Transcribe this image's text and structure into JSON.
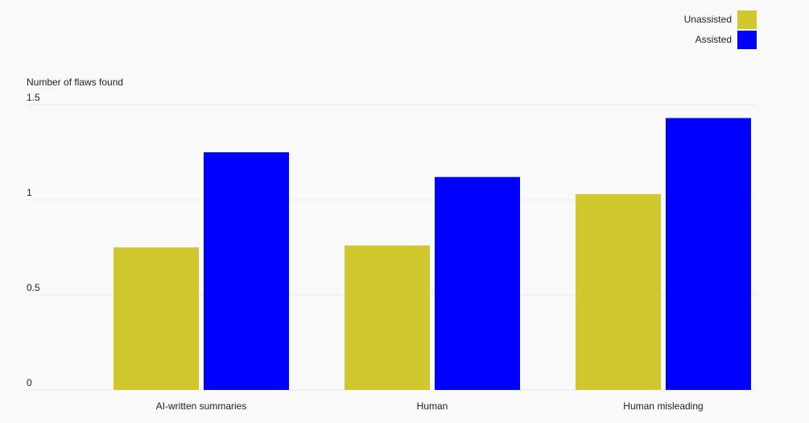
{
  "chart_data": {
    "type": "bar",
    "y_axis_label": "Number of flaws found",
    "categories": [
      "AI-written summaries",
      "Human",
      "Human misleading"
    ],
    "series": [
      {
        "name": "Unassisted",
        "color": "#d0c72f",
        "values": [
          0.75,
          0.76,
          1.03
        ]
      },
      {
        "name": "Assisted",
        "color": "#0000ff",
        "values": [
          1.25,
          1.12,
          1.43
        ]
      }
    ],
    "ylim": [
      0,
      1.5
    ],
    "yticks": [
      0,
      0.5,
      1,
      1.5
    ],
    "grid": true,
    "legend": "top-right"
  }
}
